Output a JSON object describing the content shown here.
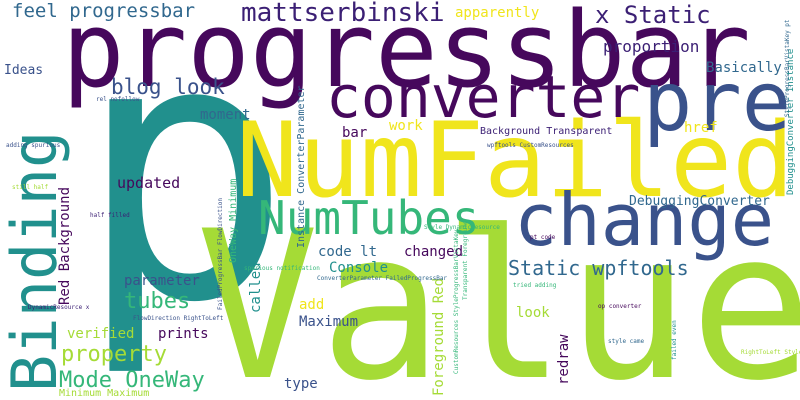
{
  "palette": {
    "purple": "#46085c",
    "indigo": "#3b1f74",
    "blue": "#3a528b",
    "steel": "#31688e",
    "teal": "#21908d",
    "green": "#35b779",
    "lime": "#a5db36",
    "yellow": "#f0e51c"
  },
  "words": [
    {
      "text": "p",
      "color": "#21908d"
    },
    {
      "text": "Value",
      "color": "#a5db36"
    },
    {
      "text": "progressbar",
      "color": "#46085c"
    },
    {
      "text": "NumFailed",
      "color": "#f0e51c"
    },
    {
      "text": "change",
      "color": "#3a528b"
    },
    {
      "text": "converter",
      "color": "#46085c"
    },
    {
      "text": "pre",
      "color": "#3a528b"
    },
    {
      "text": "Binding",
      "color": "#21908d"
    },
    {
      "text": "NumTubes",
      "color": "#35b779"
    },
    {
      "text": "mattserbinski",
      "color": "#3b1f74"
    },
    {
      "text": "x Static",
      "color": "#3b1f74"
    },
    {
      "text": "feel progressbar",
      "color": "#31688e"
    },
    {
      "text": "blog look",
      "color": "#3a528b"
    },
    {
      "text": "Static wpftools",
      "color": "#31688e"
    },
    {
      "text": "Mode OneWay",
      "color": "#35b779"
    },
    {
      "text": "property",
      "color": "#a5db36"
    },
    {
      "text": "tubes",
      "color": "#35b779"
    },
    {
      "text": "apparently",
      "color": "#f0e51c"
    },
    {
      "text": "proportion",
      "color": "#3b1f74"
    },
    {
      "text": "Basically",
      "color": "#31688e"
    },
    {
      "text": "Ideas",
      "color": "#3a528b"
    },
    {
      "text": "moment",
      "color": "#31688e"
    },
    {
      "text": "work",
      "color": "#f0e51c"
    },
    {
      "text": "href",
      "color": "#f0e51c"
    },
    {
      "text": "bar",
      "color": "#46085c"
    },
    {
      "text": "Background Transparent",
      "color": "#3b1f74"
    },
    {
      "text": "updated",
      "color": "#46085c"
    },
    {
      "text": "DebuggingConverter",
      "color": "#31688e"
    },
    {
      "text": "code lt",
      "color": "#31688e"
    },
    {
      "text": "changed",
      "color": "#46085c"
    },
    {
      "text": "Console",
      "color": "#21908d"
    },
    {
      "text": "parameter",
      "color": "#3a528b"
    },
    {
      "text": "add",
      "color": "#f0e51c"
    },
    {
      "text": "look",
      "color": "#a5db36"
    },
    {
      "text": "Maximum",
      "color": "#3a528b"
    },
    {
      "text": "verified",
      "color": "#a5db36"
    },
    {
      "text": "prints",
      "color": "#46085c"
    },
    {
      "text": "type",
      "color": "#3a528b"
    },
    {
      "text": "Red Background",
      "color": "#46085c"
    },
    {
      "text": "called",
      "color": "#21908d"
    },
    {
      "text": "Foreground Red",
      "color": "#a5db36"
    },
    {
      "text": "redraw",
      "color": "#46085c"
    },
    {
      "text": "Instance ConverterParameter",
      "color": "#31688e"
    },
    {
      "text": "DebuggingConverter Instance",
      "color": "#21908d"
    },
    {
      "text": "OneWay Minimum",
      "color": "#35b779"
    },
    {
      "text": "StyleProgressBarVistaKey pt",
      "color": "#31688e"
    },
    {
      "text": "ConverterParameter FailedProgressBar",
      "color": "#31688e"
    },
    {
      "text": "FlowDirection RightToLeft",
      "color": "#3a528b"
    },
    {
      "text": "DynamicResource x",
      "color": "#3b1f74"
    },
    {
      "text": "Minimum Maximum",
      "color": "#a5db36"
    },
    {
      "text": "rel nofollow",
      "color": "#3a528b"
    },
    {
      "text": "adding spurious",
      "color": "#3a528b"
    },
    {
      "text": "still half",
      "color": "#a5db36"
    },
    {
      "text": "half filled",
      "color": "#3b1f74"
    },
    {
      "text": "FailedProgressBar FlowDirection",
      "color": "#3a528b"
    },
    {
      "text": "wpftools CustomResources",
      "color": "#3a528b"
    },
    {
      "text": "Style DynamicResource",
      "color": "#35b779"
    },
    {
      "text": "spurious notification",
      "color": "#35b779"
    },
    {
      "text": "pt code",
      "color": "#46085c"
    },
    {
      "text": "tried adding",
      "color": "#35b779"
    },
    {
      "text": "op converter",
      "color": "#46085c"
    },
    {
      "text": "style came",
      "color": "#31688e"
    },
    {
      "text": "RightToLeft Style",
      "color": "#a5db36"
    },
    {
      "text": "failed even",
      "color": "#21908d"
    },
    {
      "text": "CustomResources StyleProgressBarVistaKey",
      "color": "#35b779"
    },
    {
      "text": "Transparent Foreground",
      "color": "#35b779"
    }
  ]
}
